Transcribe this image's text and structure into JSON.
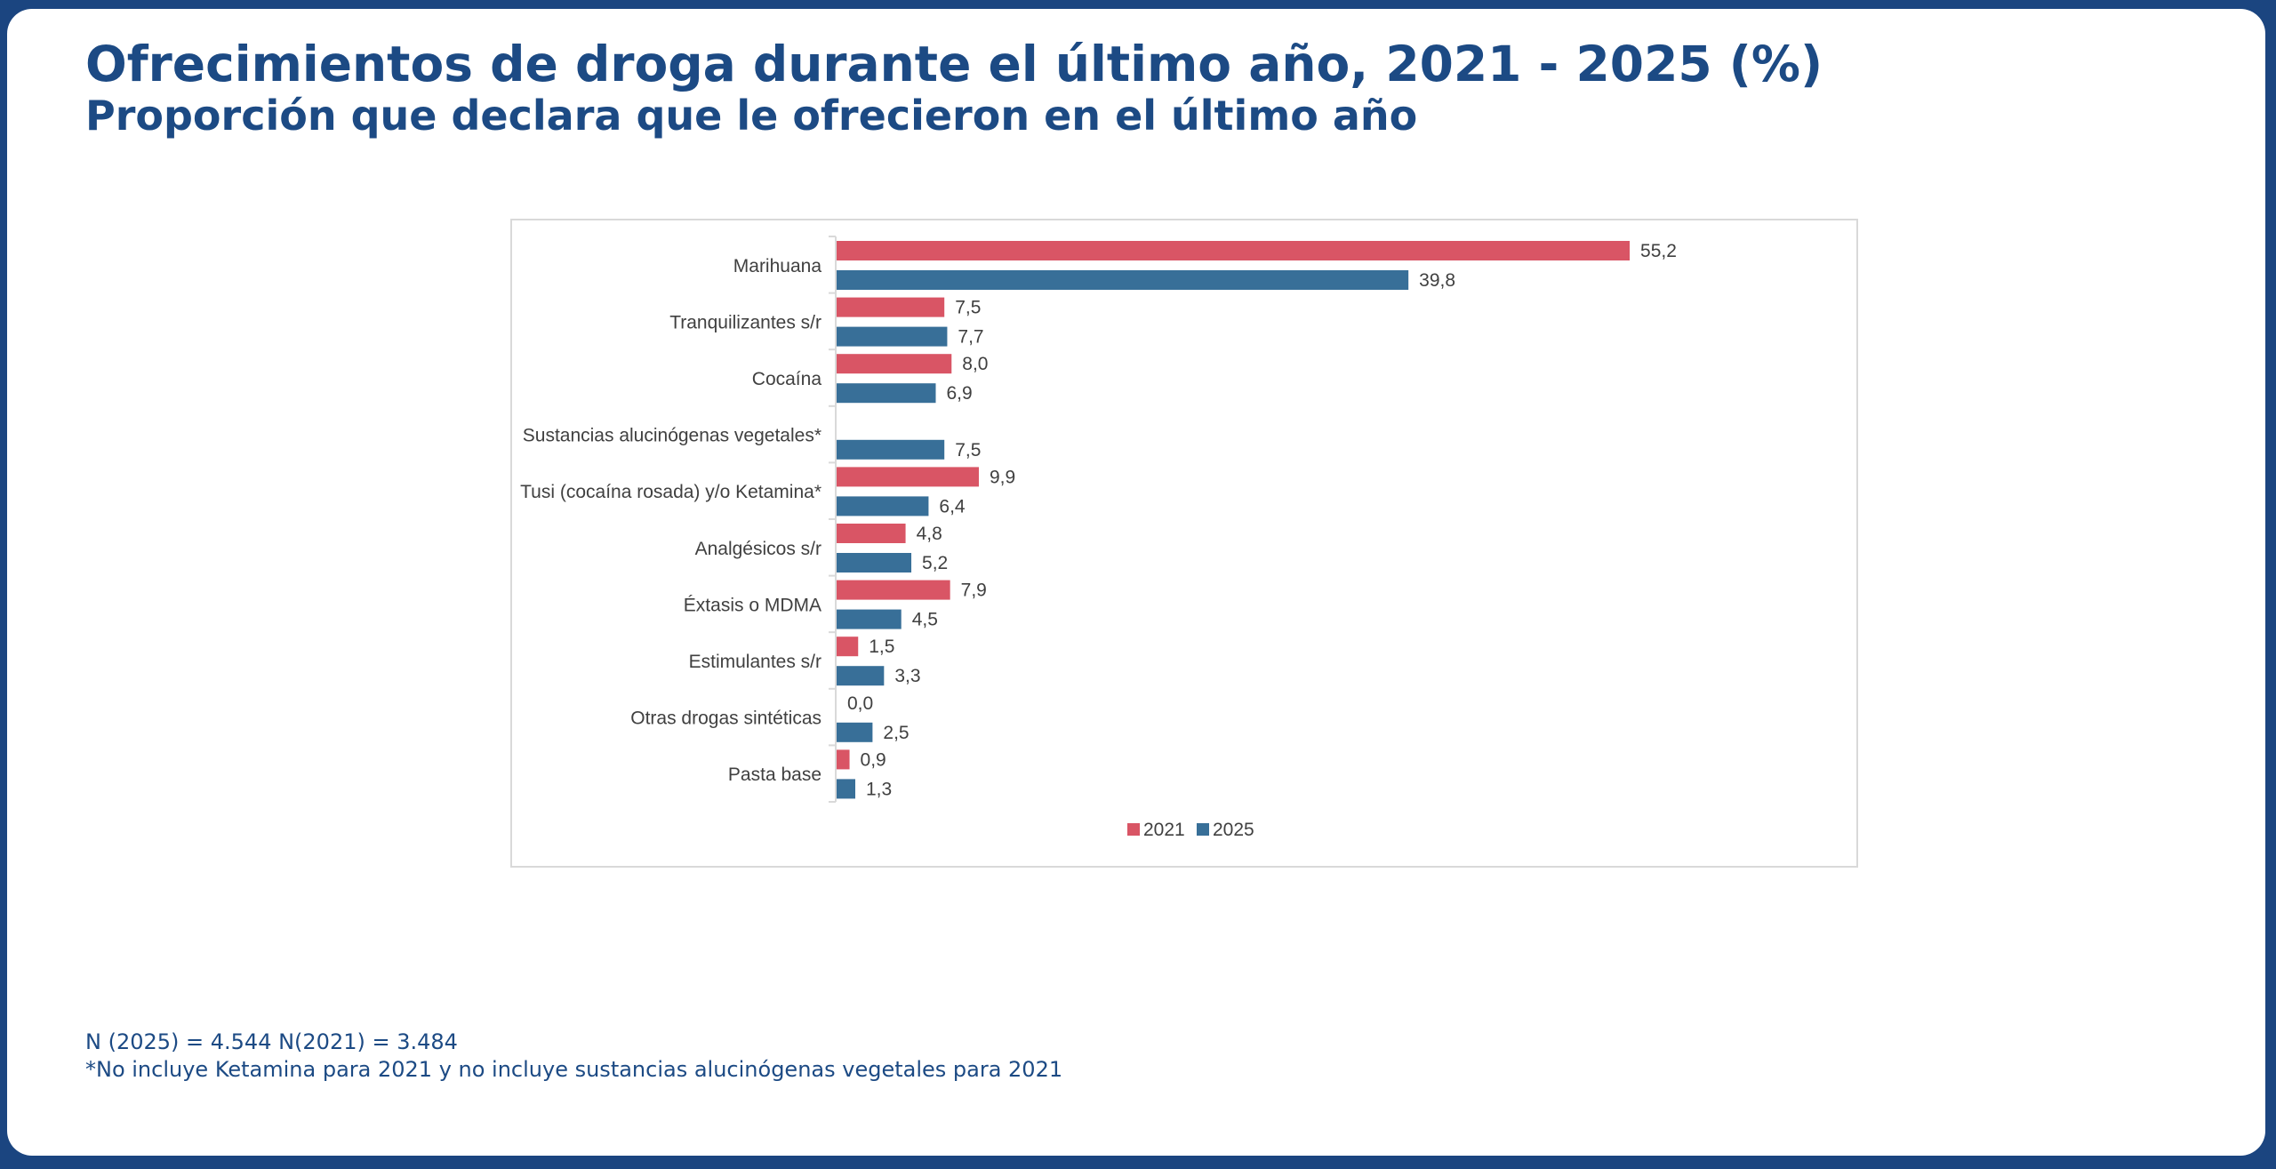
{
  "header": {
    "title": "Ofrecimientos de droga durante el último año, 2021 - 2025 (%)",
    "subtitle": "Proporción que declara que le ofrecieron en el último año"
  },
  "footnotes": {
    "sample_sizes": "N (2025) = 4.544 N(2021) = 3.484",
    "note": "*No incluye Ketamina para 2021 y no incluye sustancias alucinógenas vegetales para 2021"
  },
  "colors": {
    "series_2021": "#d95565",
    "series_2025": "#386f98",
    "text": "#404040",
    "axis": "#d9d9d9"
  },
  "chart_data": {
    "type": "bar",
    "orientation": "horizontal",
    "title": "",
    "xlabel": "",
    "ylabel": "",
    "xlim": [
      0,
      60
    ],
    "grid": false,
    "legend_position": "bottom",
    "decimal_separator": ",",
    "categories": [
      "Marihuana",
      "Tranquilizantes s/r",
      "Cocaína",
      "Sustancias alucinógenas vegetales*",
      "Tusi (cocaína rosada) y/o Ketamina*",
      "Analgésicos s/r",
      "Éxtasis o MDMA",
      "Estimulantes s/r",
      "Otras drogas sintéticas",
      "Pasta base"
    ],
    "series": [
      {
        "name": "2021",
        "values": [
          55.2,
          7.5,
          8.0,
          null,
          9.9,
          4.8,
          7.9,
          1.5,
          0.0,
          0.9
        ],
        "labels": [
          "55,2",
          "7,5",
          "8,0",
          null,
          "9,9",
          "4,8",
          "7,9",
          "1,5",
          "0,0",
          "0,9"
        ]
      },
      {
        "name": "2025",
        "values": [
          39.8,
          7.7,
          6.9,
          7.5,
          6.4,
          5.2,
          4.5,
          3.3,
          2.5,
          1.3
        ],
        "labels": [
          "39,8",
          "7,7",
          "6,9",
          "7,5",
          "6,4",
          "5,2",
          "4,5",
          "3,3",
          "2,5",
          "1,3"
        ]
      }
    ]
  }
}
